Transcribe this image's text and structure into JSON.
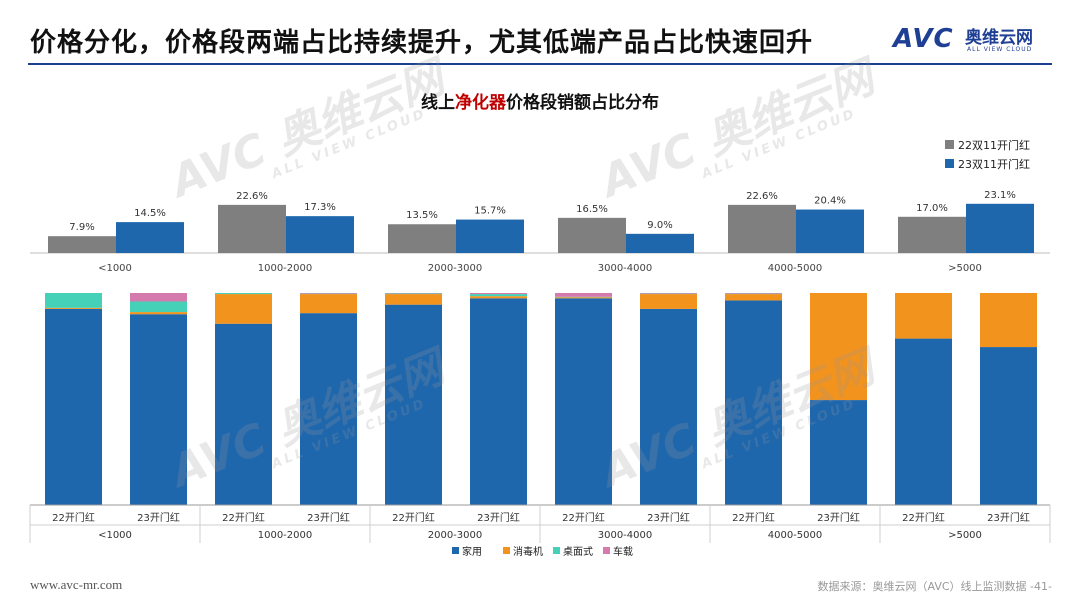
{
  "header": {
    "title": "价格分化，价格段两端占比持续提升，尤其低端产品占比快速回升",
    "logo_mark": "AVC",
    "logo_name": "奥维云网",
    "logo_sub": "ALL VIEW CLOUD"
  },
  "chart_title_prefix": "线上",
  "chart_title_highlight": "净化器",
  "chart_title_suffix": "价格段销额占比分布",
  "colors": {
    "accent": "#1a3f8f",
    "series_22": "#7f7f7f",
    "series_23": "#1f67ad",
    "household": "#1f67ad",
    "disinfection": "#f2931e",
    "desktop": "#45d0b8",
    "vehicle": "#d47aad",
    "highlight": "#c00000"
  },
  "watermark": {
    "mark": "AVC 奥维云网",
    "sub": "ALL VIEW CLOUD"
  },
  "chart_data": [
    {
      "type": "bar",
      "title": "线上净化器价格段销额占比分布",
      "categories": [
        "<1000",
        "1000-2000",
        "2000-3000",
        "3000-4000",
        "4000-5000",
        ">5000"
      ],
      "series": [
        {
          "name": "22双11开门红",
          "values": [
            7.9,
            22.6,
            13.5,
            16.5,
            22.6,
            17.0
          ],
          "labels": [
            "7.9%",
            "22.6%",
            "13.5%",
            "16.5%",
            "22.6%",
            "17.0%"
          ]
        },
        {
          "name": "23双11开门红",
          "values": [
            14.5,
            17.3,
            15.7,
            9.0,
            20.4,
            23.1
          ],
          "labels": [
            "14.5%",
            "17.3%",
            "15.7%",
            "9.0%",
            "20.4%",
            "23.1%"
          ]
        }
      ],
      "ylim": [
        0,
        30
      ],
      "legend_position": "top-right",
      "xlabel": "",
      "ylabel": ""
    },
    {
      "type": "bar",
      "stacked": true,
      "groups": [
        "<1000",
        "1000-2000",
        "2000-3000",
        "3000-4000",
        "4000-5000",
        ">5000"
      ],
      "group_bar_labels": [
        "22开门红",
        "23开门红"
      ],
      "series": [
        {
          "name": "家用",
          "values": [
            [
              92.5,
              90.0
            ],
            [
              85.5,
              90.5
            ],
            [
              94.5,
              97.5
            ],
            [
              97.5,
              92.5
            ],
            [
              96.5,
              49.5
            ],
            [
              78.5,
              74.5
            ]
          ]
        },
        {
          "name": "消毒机",
          "values": [
            [
              0.5,
              1.0
            ],
            [
              14.0,
              9.0
            ],
            [
              5.0,
              1.0
            ],
            [
              0.5,
              7.0
            ],
            [
              3.0,
              50.5
            ],
            [
              21.5,
              25.5
            ]
          ]
        },
        {
          "name": "桌面式",
          "values": [
            [
              7.0,
              5.0
            ],
            [
              0.5,
              0.2
            ],
            [
              0.3,
              1.0
            ],
            [
              0.2,
              0.2
            ],
            [
              0.2,
              0.0
            ],
            [
              0.0,
              0.0
            ]
          ]
        },
        {
          "name": "车载",
          "values": [
            [
              0.0,
              4.0
            ],
            [
              0.0,
              0.3
            ],
            [
              0.2,
              0.5
            ],
            [
              1.8,
              0.3
            ],
            [
              0.3,
              0.0
            ],
            [
              0.0,
              0.0
            ]
          ]
        }
      ],
      "ylim": [
        0,
        100
      ],
      "legend_position": "bottom"
    }
  ],
  "footer": {
    "website": "www.avc-mr.com",
    "source": "数据来源：奥维云网（AVC）线上监测数据 -41-"
  }
}
